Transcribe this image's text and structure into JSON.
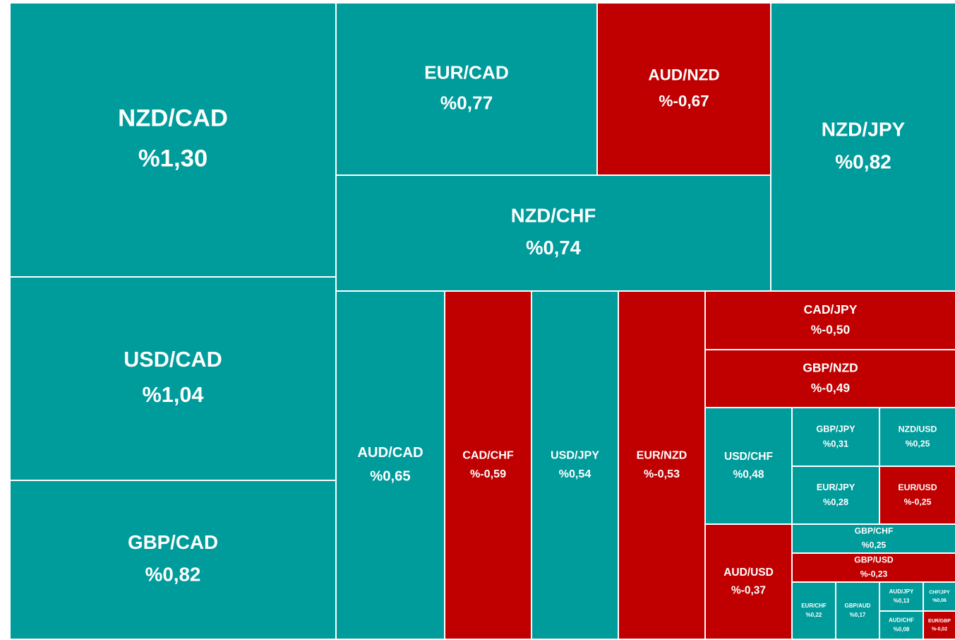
{
  "chart_data": {
    "type": "treemap",
    "categories": [
      "NZD/CAD",
      "USD/CAD",
      "GBP/CAD",
      "EUR/CAD",
      "AUD/NZD",
      "NZD/JPY",
      "NZD/CHF",
      "AUD/CAD",
      "CAD/CHF",
      "USD/JPY",
      "EUR/NZD",
      "CAD/JPY",
      "GBP/NZD",
      "USD/CHF",
      "GBP/JPY",
      "NZD/USD",
      "EUR/JPY",
      "EUR/USD",
      "AUD/USD",
      "GBP/CHF",
      "GBP/USD",
      "EUR/CHF",
      "GBP/AUD",
      "AUD/JPY",
      "CHF/JPY",
      "AUD/CHF",
      "EUR/GBP"
    ],
    "values": [
      1.3,
      1.04,
      0.82,
      0.77,
      -0.67,
      0.82,
      0.74,
      0.65,
      -0.59,
      0.54,
      -0.53,
      -0.5,
      -0.49,
      0.48,
      0.31,
      0.25,
      0.28,
      -0.25,
      -0.37,
      0.25,
      -0.23,
      0.22,
      0.17,
      0.13,
      0.06,
      0.08,
      -0.02
    ],
    "value_labels": [
      "%1,30",
      "%1,04",
      "%0,82",
      "%0,77",
      "%-0,67",
      "%0,82",
      "%0,74",
      "%0,65",
      "%-0,59",
      "%0,54",
      "%-0,53",
      "%-0,50",
      "%-0,49",
      "%0,48",
      "%0,31",
      "%0,25",
      "%0,28",
      "%-0,25",
      "%-0,37",
      "%0,25",
      "%-0,23",
      "%0,22",
      "%0,17",
      "%0,13",
      "%0,06",
      "%0,08",
      "%-0,02"
    ],
    "colors": {
      "positive": "#009b9b",
      "negative": "#c00000"
    }
  }
}
